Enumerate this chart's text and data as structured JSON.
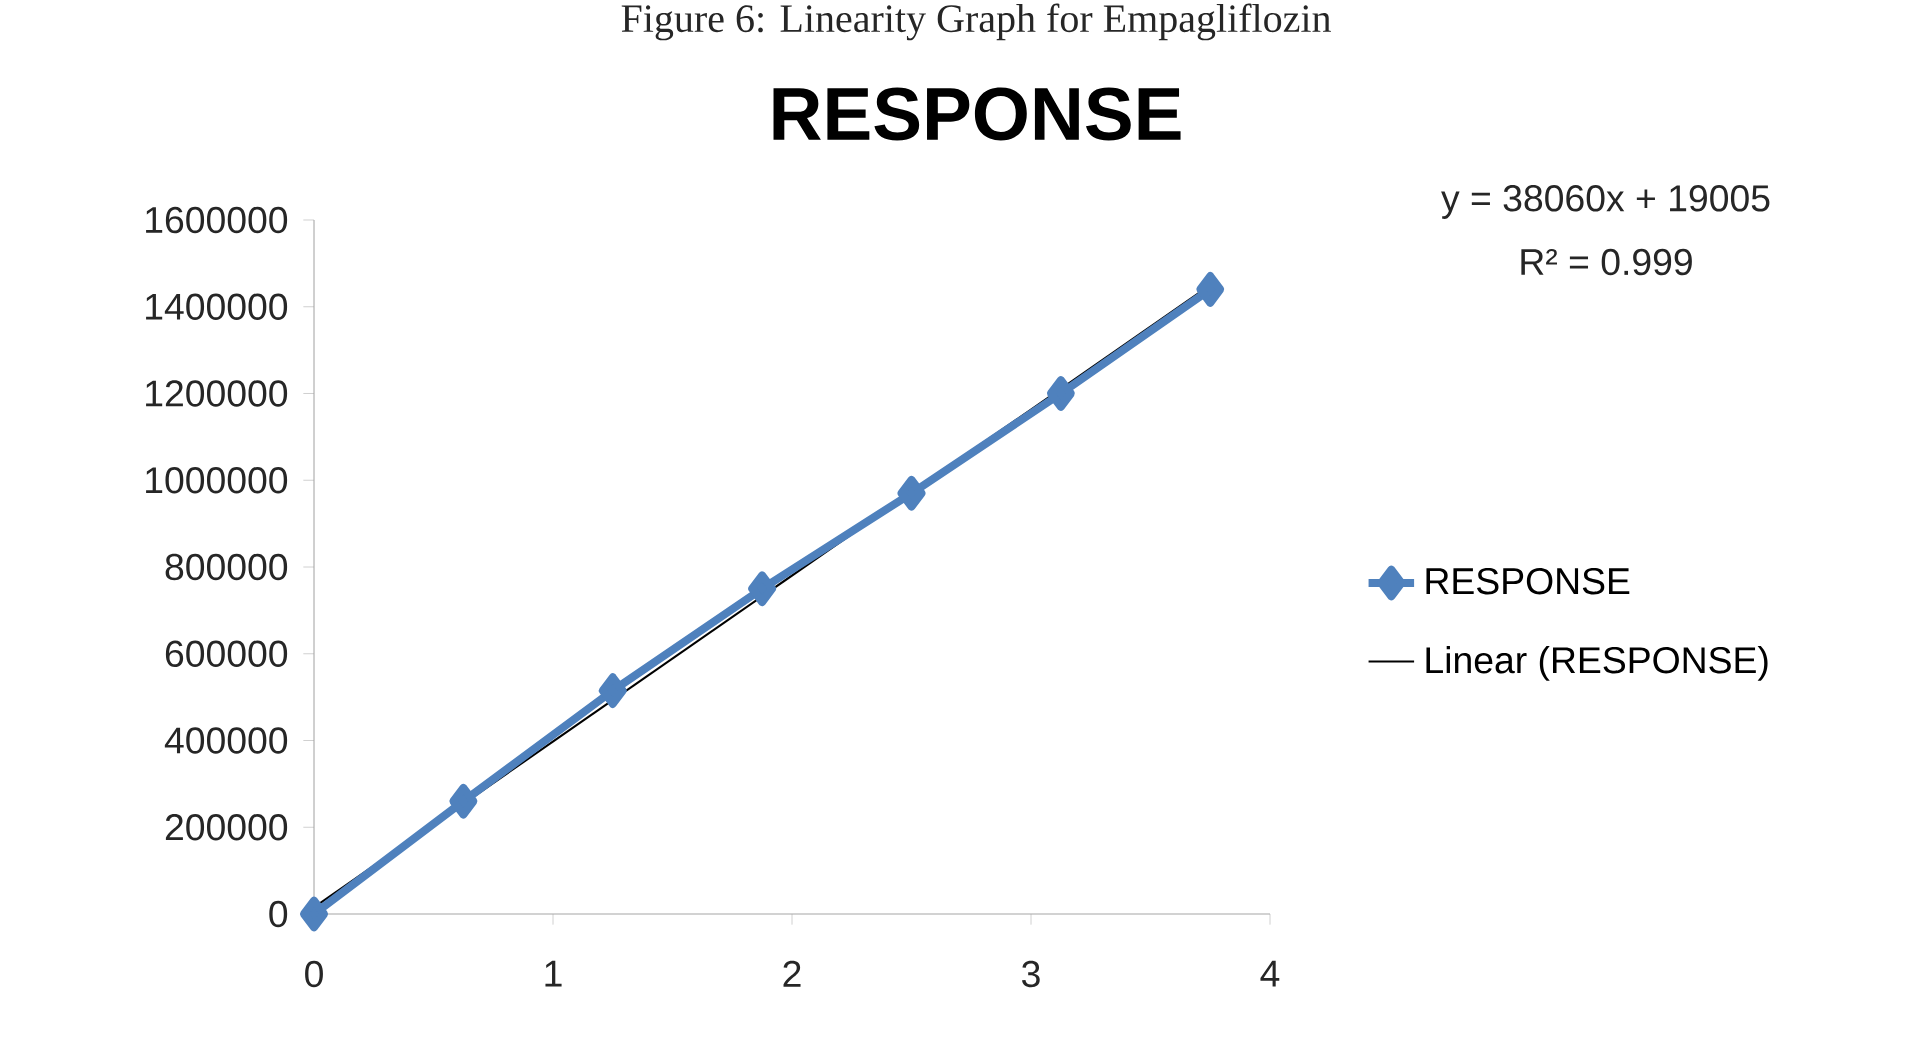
{
  "chart_data": {
    "type": "line",
    "title": "RESPONSE",
    "annotations": [
      "Figure 6: Linearity Graph for Empagliflozin",
      "y = 38060x + 19005",
      "R² = 0.999"
    ],
    "x": [
      0,
      0.625,
      1.25,
      1.875,
      2.5,
      3.125,
      3.75
    ],
    "series": [
      {
        "name": "RESPONSE",
        "color": "#4f81bd",
        "marker": "diamond",
        "values": [
          0,
          260000,
          515000,
          750000,
          970000,
          1200000,
          1440000
        ]
      },
      {
        "name": "Linear (RESPONSE)",
        "color": "#000000",
        "marker": "none",
        "x": [
          0,
          3.75
        ],
        "values": [
          15000,
          1450000
        ]
      }
    ],
    "xlim": [
      0,
      4
    ],
    "xticks": [
      0,
      1,
      2,
      3,
      4
    ],
    "ylim": [
      0,
      1600000
    ],
    "yticks": [
      0,
      200000,
      400000,
      600000,
      800000,
      1000000,
      1200000,
      1400000,
      1600000
    ],
    "grid": false,
    "legend": "right"
  }
}
